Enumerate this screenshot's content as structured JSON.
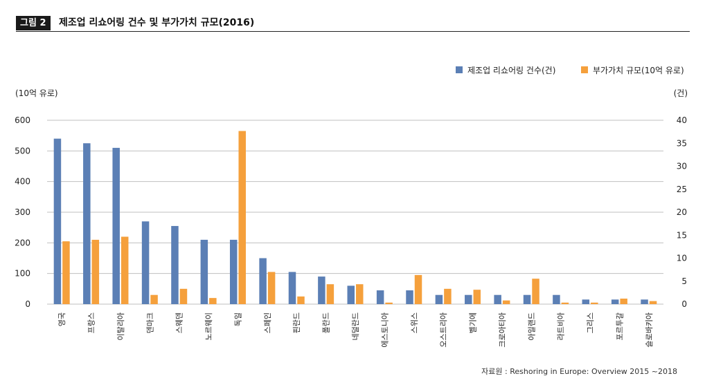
{
  "figure": {
    "badge": "그림 2",
    "title": "제조업 리쇼어링 건수 및 부가가치 규모(2016)",
    "source": "자료원 : Reshoring in Europe: Overview 2015 ~2018"
  },
  "colors": {
    "count": "#5b7fb5",
    "value": "#f5a03c",
    "grid": "#bfbfbf"
  },
  "chart_data": {
    "type": "bar",
    "title": "제조업 리쇼어링 건수 및 부가가치 규모(2016)",
    "categories": [
      "영국",
      "프랑스",
      "이탈리아",
      "덴마크",
      "스웨덴",
      "노르웨이",
      "독일",
      "스페인",
      "핀란드",
      "폴란드",
      "네덜란드",
      "에스토니아",
      "스위스",
      "오스트리아",
      "벨기에",
      "크로아티아",
      "아일랜드",
      "라트비아",
      "그리스",
      "포르투갈",
      "슬로바키아"
    ],
    "series": [
      {
        "name": "제조업 리쇼어링 건수(건)",
        "axis": "right",
        "values": [
          36,
          35,
          34,
          18,
          17,
          14,
          14,
          10,
          7,
          6,
          4,
          3,
          3,
          2,
          2,
          2,
          2,
          2,
          1,
          1,
          1
        ]
      },
      {
        "name": "부가가치 규모(10억 유로)",
        "axis": "left",
        "values": [
          205,
          210,
          220,
          30,
          50,
          20,
          565,
          105,
          25,
          65,
          65,
          5,
          95,
          50,
          47,
          12,
          83,
          5,
          5,
          18,
          10
        ]
      }
    ],
    "y_left": {
      "unit": "(10억 유로)",
      "range": [
        0,
        600
      ],
      "ticks": [
        "0",
        "100",
        "200",
        "300",
        "400",
        "500",
        "600"
      ]
    },
    "y_right": {
      "unit": "(건)",
      "range": [
        0,
        40
      ],
      "ticks": [
        "0",
        "5",
        "10",
        "15",
        "20",
        "25",
        "30",
        "35",
        "40"
      ]
    },
    "grid": true,
    "legend_position": "top-right"
  }
}
